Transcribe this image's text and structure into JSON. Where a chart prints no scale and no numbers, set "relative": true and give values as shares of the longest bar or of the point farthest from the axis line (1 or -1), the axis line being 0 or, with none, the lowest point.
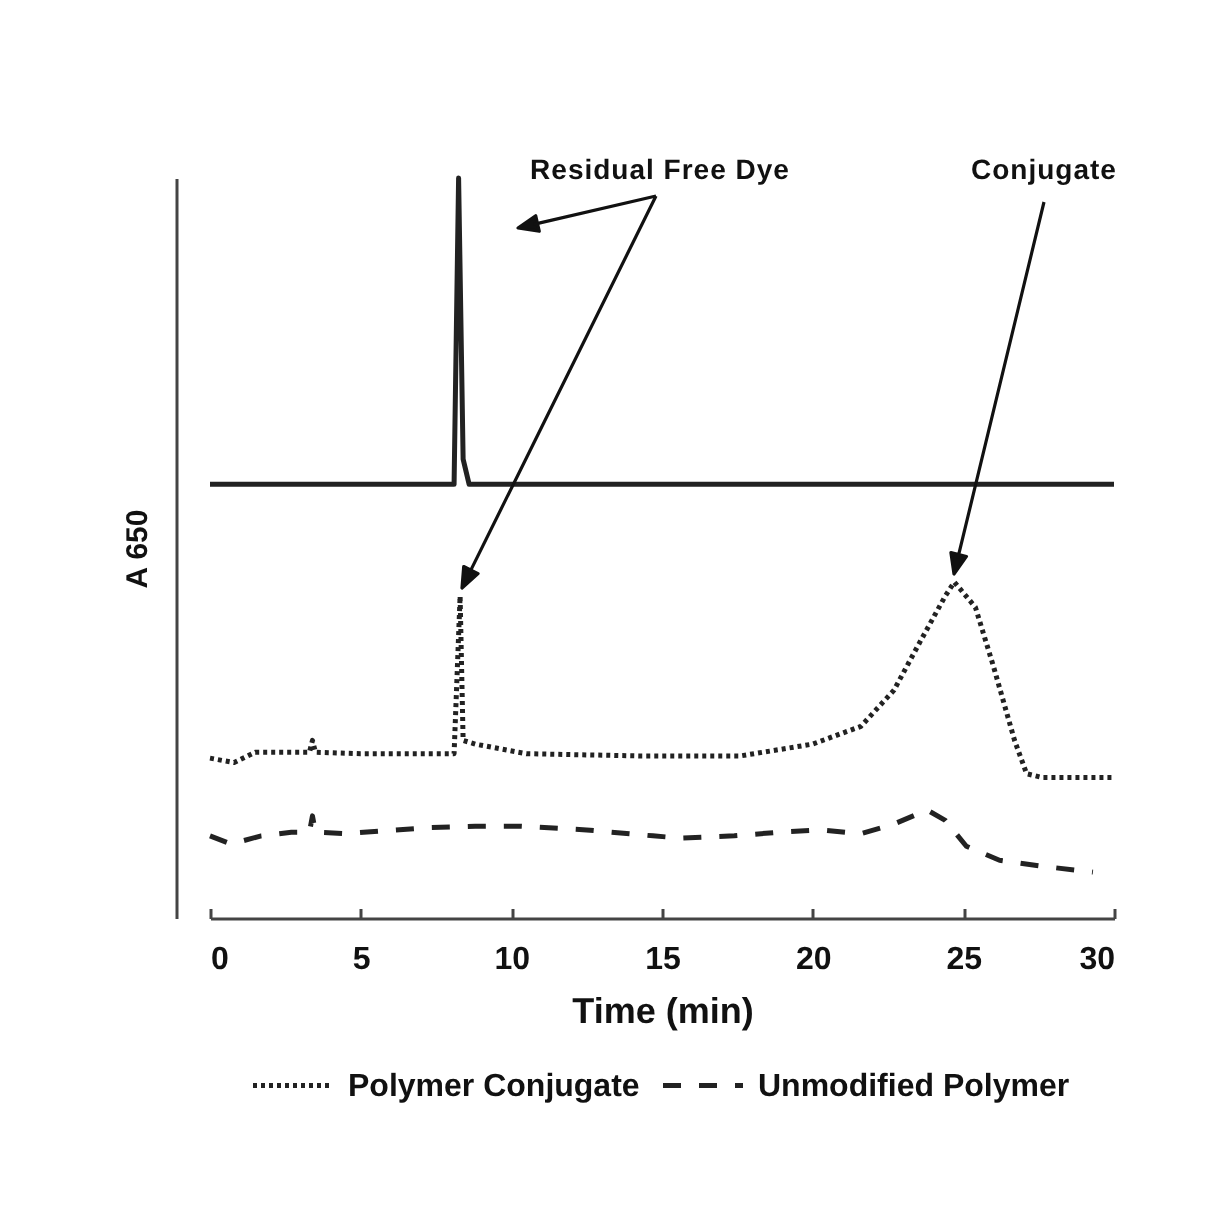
{
  "chart_data": {
    "type": "line",
    "xlabel": "Time (min)",
    "ylabel": "A 650",
    "relative": true,
    "xlim": [
      0,
      30
    ],
    "xticks": [
      0,
      5,
      10,
      15,
      20,
      25,
      30
    ],
    "grid": false,
    "legend": "bottom",
    "tick_labels": "x",
    "annotations": [
      "Residual Free Dye",
      "Conjugate"
    ],
    "series": [
      {
        "color": "#222222",
        "line_style": "solid",
        "x": [
          0,
          8.1,
          8.25,
          8.4,
          8.6,
          30
        ],
        "values": [
          0.586,
          0.586,
          1.0,
          0.62,
          0.586,
          0.586
        ]
      },
      {
        "name": "Polymer Conjugate",
        "color": "#222222",
        "line_style": "dotted",
        "x": [
          0,
          0.8,
          1.5,
          3.3,
          3.4,
          3.5,
          5,
          8.1,
          8.3,
          8.4,
          8.8,
          10.5,
          14.3,
          17.6,
          20,
          21.6,
          22.7,
          23.6,
          24.4,
          24.7,
          25.4,
          26,
          26.7,
          27.1,
          27.6,
          30
        ],
        "values": [
          0.216,
          0.21,
          0.224,
          0.224,
          0.24,
          0.224,
          0.222,
          0.222,
          0.435,
          0.24,
          0.235,
          0.222,
          0.219,
          0.219,
          0.235,
          0.259,
          0.308,
          0.376,
          0.435,
          0.454,
          0.42,
          0.34,
          0.24,
          0.195,
          0.19,
          0.19
        ]
      },
      {
        "name": "Unmodified Polymer",
        "color": "#222222",
        "line_style": "dashed",
        "x": [
          0,
          0.7,
          1.7,
          2.7,
          3.3,
          3.4,
          3.5,
          4.5,
          7.2,
          8.8,
          10.3,
          12.5,
          14.7,
          15.6,
          17.4,
          18.9,
          20.3,
          21.6,
          22.7,
          23.8,
          24.4,
          25.1,
          26.2,
          27.6,
          29.3
        ],
        "values": [
          0.111,
          0.1,
          0.111,
          0.116,
          0.116,
          0.138,
          0.116,
          0.114,
          0.122,
          0.124,
          0.124,
          0.119,
          0.111,
          0.108,
          0.111,
          0.116,
          0.119,
          0.114,
          0.127,
          0.146,
          0.132,
          0.097,
          0.078,
          0.07,
          0.062
        ]
      }
    ]
  }
}
